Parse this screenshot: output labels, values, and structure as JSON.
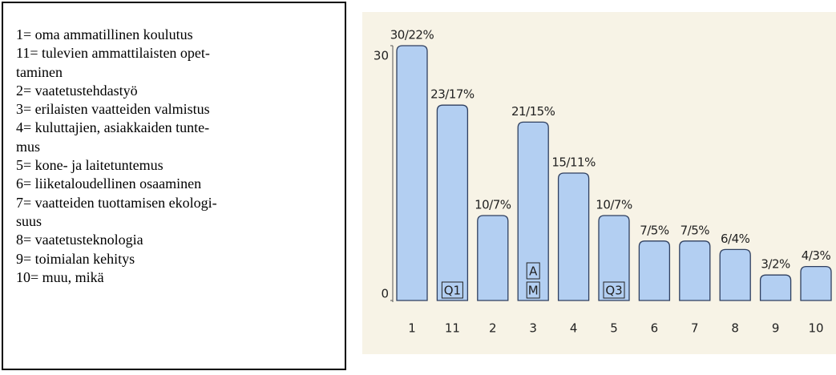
{
  "legend": {
    "lines": [
      "1= oma ammatillinen koulutus",
      "11= tulevien ammattilaisten opet-",
      "taminen",
      "2= vaatetustehdastyö",
      "3= erilaisten vaatteiden valmistus",
      "4= kuluttajien, asiakkaiden tunte-",
      "mus",
      "5= kone- ja laitetuntemus",
      "6= liiketaloudellinen osaaminen",
      "7= vaatteiden tuottamisen ekologi-",
      "suus",
      "8= vaatetusteknologia",
      "9= toimialan kehitys",
      "10= muu, mikä"
    ]
  },
  "chart_data": {
    "type": "bar",
    "categories": [
      "1",
      "11",
      "2",
      "3",
      "4",
      "5",
      "6",
      "7",
      "8",
      "9",
      "10"
    ],
    "values": [
      30,
      23,
      10,
      21,
      15,
      10,
      7,
      7,
      6,
      3,
      4
    ],
    "value_labels": [
      "30/22%",
      "23/17%",
      "10/7%",
      "21/15%",
      "15/11%",
      "10/7%",
      "7/5%",
      "7/5%",
      "6/4%",
      "3/2%",
      "4/3%"
    ],
    "color": "#b3cff2",
    "ylim": [
      0,
      30
    ],
    "yticks": [
      0,
      30
    ],
    "annotations": [
      {
        "text": "Q1",
        "category": "11"
      },
      {
        "text": "A",
        "category": "3"
      },
      {
        "text": "M",
        "category": "3"
      },
      {
        "text": "Q3",
        "category": "5"
      }
    ]
  }
}
